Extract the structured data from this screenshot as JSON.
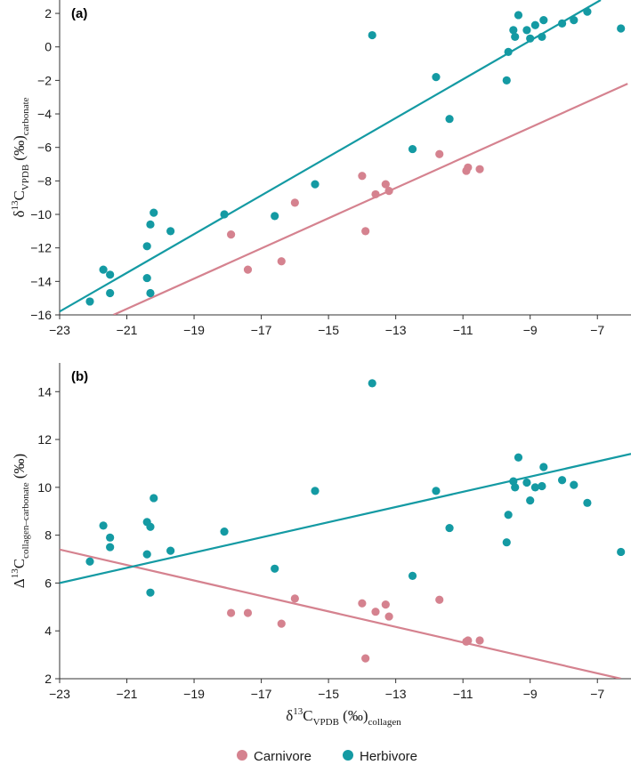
{
  "colors": {
    "carnivore": "#d5828f",
    "herbivore": "#149aa3",
    "axis": "#333333"
  },
  "legend": [
    {
      "name": "Carnivore",
      "color": "#d5828f"
    },
    {
      "name": "Herbivore",
      "color": "#149aa3"
    }
  ],
  "xaxis_label": {
    "main": "δ",
    "sup": "13",
    "c": "C",
    "sub1": "VPDB",
    "unit": " (‰)",
    "sub2": "collagen"
  },
  "chart_data": [
    {
      "type": "scatter",
      "panel_label": "(a)",
      "ylabel": {
        "main": "δ",
        "sup": "13",
        "c": "C",
        "sub1": "VPDB",
        "unit": " (‰)",
        "sub2": "carbonate"
      },
      "xlim": [
        -23,
        -6
      ],
      "ylim": [
        -16,
        2.8
      ],
      "xticks": [
        -23,
        -21,
        -19,
        -17,
        -15,
        -13,
        -11,
        -9,
        -7
      ],
      "yticks": [
        -16,
        -14,
        -12,
        -10,
        -8,
        -6,
        -4,
        -2,
        0,
        2
      ],
      "series": [
        {
          "name": "Carnivore",
          "points": [
            [
              -17.9,
              -11.2
            ],
            [
              -17.4,
              -13.3
            ],
            [
              -16.4,
              -12.8
            ],
            [
              -16.0,
              -9.3
            ],
            [
              -14.0,
              -7.7
            ],
            [
              -13.9,
              -11.0
            ],
            [
              -13.6,
              -8.8
            ],
            [
              -13.3,
              -8.2
            ],
            [
              -13.2,
              -8.6
            ],
            [
              -11.7,
              -6.4
            ],
            [
              -10.9,
              -7.4
            ],
            [
              -10.85,
              -7.2
            ],
            [
              -10.5,
              -7.3
            ]
          ],
          "fit": [
            [
              -21.4,
              -16.0
            ],
            [
              -6.1,
              -2.2
            ]
          ]
        },
        {
          "name": "Herbivore",
          "points": [
            [
              -22.1,
              -15.2
            ],
            [
              -21.7,
              -13.3
            ],
            [
              -21.5,
              -13.6
            ],
            [
              -21.5,
              -14.7
            ],
            [
              -20.4,
              -11.9
            ],
            [
              -20.4,
              -13.8
            ],
            [
              -20.3,
              -10.6
            ],
            [
              -20.3,
              -14.7
            ],
            [
              -20.2,
              -9.9
            ],
            [
              -19.7,
              -11.0
            ],
            [
              -18.1,
              -10.0
            ],
            [
              -16.6,
              -10.1
            ],
            [
              -15.4,
              -8.2
            ],
            [
              -13.7,
              0.7
            ],
            [
              -12.5,
              -6.1
            ],
            [
              -11.8,
              -1.8
            ],
            [
              -11.4,
              -4.3
            ],
            [
              -9.7,
              -2.0
            ],
            [
              -9.65,
              -0.3
            ],
            [
              -9.5,
              1.0
            ],
            [
              -9.45,
              0.6
            ],
            [
              -9.35,
              1.9
            ],
            [
              -9.1,
              1.0
            ],
            [
              -9.0,
              0.5
            ],
            [
              -8.85,
              1.3
            ],
            [
              -8.65,
              0.6
            ],
            [
              -8.6,
              1.6
            ],
            [
              -8.05,
              1.4
            ],
            [
              -7.7,
              1.6
            ],
            [
              -7.3,
              2.1
            ],
            [
              -6.3,
              1.1
            ]
          ],
          "fit": [
            [
              -23.0,
              -15.8
            ],
            [
              -6.9,
              2.8
            ]
          ]
        }
      ]
    },
    {
      "type": "scatter",
      "panel_label": "(b)",
      "ylabel": {
        "main": "Δ",
        "sup": "13",
        "c": "C",
        "sub1": "collagen–carbonate",
        "unit": " (‰)",
        "sub2": ""
      },
      "xlim": [
        -23,
        -6
      ],
      "ylim": [
        2,
        15.2
      ],
      "xticks": [
        -23,
        -21,
        -19,
        -17,
        -15,
        -13,
        -11,
        -9,
        -7
      ],
      "yticks": [
        2,
        4,
        6,
        8,
        10,
        12,
        14
      ],
      "series": [
        {
          "name": "Carnivore",
          "points": [
            [
              -17.9,
              4.75
            ],
            [
              -17.4,
              4.75
            ],
            [
              -16.4,
              4.3
            ],
            [
              -16.0,
              5.35
            ],
            [
              -14.0,
              5.15
            ],
            [
              -13.9,
              2.85
            ],
            [
              -13.6,
              4.8
            ],
            [
              -13.3,
              5.1
            ],
            [
              -13.2,
              4.6
            ],
            [
              -11.7,
              5.3
            ],
            [
              -10.9,
              3.55
            ],
            [
              -10.85,
              3.6
            ],
            [
              -10.5,
              3.6
            ]
          ],
          "fit": [
            [
              -23.0,
              7.4
            ],
            [
              -6.3,
              2.0
            ]
          ]
        },
        {
          "name": "Herbivore",
          "points": [
            [
              -22.1,
              6.9
            ],
            [
              -21.7,
              8.4
            ],
            [
              -21.5,
              7.9
            ],
            [
              -21.5,
              7.5
            ],
            [
              -20.4,
              8.55
            ],
            [
              -20.4,
              7.2
            ],
            [
              -20.3,
              8.35
            ],
            [
              -20.3,
              5.6
            ],
            [
              -20.2,
              9.55
            ],
            [
              -19.7,
              7.35
            ],
            [
              -18.1,
              8.15
            ],
            [
              -16.6,
              6.6
            ],
            [
              -15.4,
              9.85
            ],
            [
              -13.7,
              14.35
            ],
            [
              -12.5,
              6.3
            ],
            [
              -11.8,
              9.85
            ],
            [
              -11.4,
              8.3
            ],
            [
              -9.7,
              7.7
            ],
            [
              -9.65,
              8.85
            ],
            [
              -9.5,
              10.25
            ],
            [
              -9.45,
              10.0
            ],
            [
              -9.35,
              11.25
            ],
            [
              -9.1,
              10.2
            ],
            [
              -9.0,
              9.45
            ],
            [
              -8.85,
              10.0
            ],
            [
              -8.65,
              10.05
            ],
            [
              -8.6,
              10.85
            ],
            [
              -8.05,
              10.3
            ],
            [
              -7.7,
              10.1
            ],
            [
              -7.3,
              9.35
            ],
            [
              -6.3,
              7.3
            ]
          ],
          "fit": [
            [
              -23.0,
              6.0
            ],
            [
              -6.0,
              11.4
            ]
          ]
        }
      ]
    }
  ]
}
